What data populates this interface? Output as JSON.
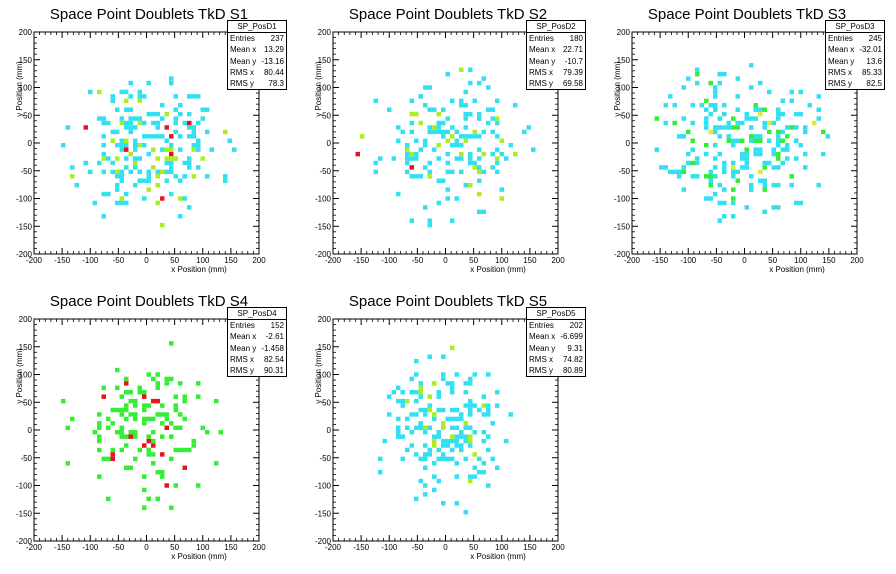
{
  "colors": {
    "cyan": "#33e0f2",
    "green": "#33ee33",
    "lime": "#aaee22",
    "yellow": "#e6e633",
    "red": "#e6141e"
  },
  "chart_data": [
    {
      "type": "heatmap",
      "title": "Space Point Doublets TkD S1",
      "xlabel": "x Position (mm)",
      "ylabel": "y Position (mm)",
      "xlim": [
        -200,
        200
      ],
      "ylim": [
        -200,
        200
      ],
      "xticks": [
        "-200",
        "-150",
        "-100",
        "-50",
        "0",
        "50",
        "100",
        "150",
        "200"
      ],
      "yticks": [
        "-200",
        "-150",
        "-100",
        "-50",
        "0",
        "50",
        "100",
        "150",
        "200"
      ],
      "stats": {
        "name": "SP_PosD1",
        "rows": [
          [
            "Entries",
            "237"
          ],
          [
            "Mean x",
            "13.29"
          ],
          [
            "Mean y",
            "-13.16"
          ],
          [
            "RMS x",
            "80.44"
          ],
          [
            "RMS y",
            "78.3"
          ]
        ]
      },
      "seed": 11,
      "n": 237,
      "spread": 160,
      "rmsx": 80.44,
      "rmsy": 78.3,
      "palette": {
        "base": "cyan",
        "accents": [
          [
            "lime",
            0.07
          ],
          [
            "red",
            0.03
          ]
        ]
      }
    },
    {
      "type": "heatmap",
      "title": "Space Point Doublets TkD S2",
      "xlabel": "x Position (mm)",
      "ylabel": "y Position (mm)",
      "xlim": [
        -200,
        200
      ],
      "ylim": [
        -200,
        200
      ],
      "xticks": [
        "-200",
        "-150",
        "-100",
        "-50",
        "0",
        "50",
        "100",
        "150",
        "200"
      ],
      "yticks": [
        "-200",
        "-150",
        "-100",
        "-50",
        "0",
        "50",
        "100",
        "150",
        "200"
      ],
      "stats": {
        "name": "SP_PosD2",
        "rows": [
          [
            "Entries",
            "180"
          ],
          [
            "Mean x",
            "22.71"
          ],
          [
            "Mean y",
            "-10.7"
          ],
          [
            "RMS x",
            "79.39"
          ],
          [
            "RMS y",
            "69.58"
          ]
        ]
      },
      "seed": 23,
      "n": 180,
      "spread": 160,
      "rmsx": 79.39,
      "rmsy": 69.58,
      "palette": {
        "base": "cyan",
        "accents": [
          [
            "lime",
            0.09
          ],
          [
            "red",
            0.01
          ]
        ]
      }
    },
    {
      "type": "heatmap",
      "title": "Space Point Doublets TkD S3",
      "xlabel": "x Position (mm)",
      "ylabel": "y Position (mm)",
      "xlim": [
        -200,
        200
      ],
      "ylim": [
        -200,
        200
      ],
      "xticks": [
        "-200",
        "-150",
        "-100",
        "-50",
        "0",
        "50",
        "100",
        "150",
        "200"
      ],
      "yticks": [
        "-200",
        "-150",
        "-100",
        "-50",
        "0",
        "50",
        "100",
        "150",
        "200"
      ],
      "stats": {
        "name": "SP_PosD3",
        "rows": [
          [
            "Entries",
            "245"
          ],
          [
            "Mean x",
            "-32.01"
          ],
          [
            "Mean y",
            "13.6"
          ],
          [
            "RMS x",
            "85.33"
          ],
          [
            "RMS y",
            "82.5"
          ]
        ]
      },
      "seed": 37,
      "n": 245,
      "spread": 160,
      "rmsx": 85.33,
      "rmsy": 82.5,
      "palette": {
        "base": "cyan",
        "accents": [
          [
            "green",
            0.12
          ],
          [
            "yellow",
            0.02
          ],
          [
            "red",
            0.01
          ]
        ]
      }
    },
    {
      "type": "heatmap",
      "title": "Space Point Doublets TkD S4",
      "xlabel": "x Position (mm)",
      "ylabel": "y Position (mm)",
      "xlim": [
        -200,
        200
      ],
      "ylim": [
        -200,
        200
      ],
      "xticks": [
        "-200",
        "-150",
        "-100",
        "-50",
        "0",
        "50",
        "100",
        "150",
        "200"
      ],
      "yticks": [
        "-200",
        "-150",
        "-100",
        "-50",
        "0",
        "50",
        "100",
        "150",
        "200"
      ],
      "stats": {
        "name": "SP_PosD4",
        "rows": [
          [
            "Entries",
            "152"
          ],
          [
            "Mean x",
            "-2.61"
          ],
          [
            "Mean y",
            "-1.458"
          ],
          [
            "RMS x",
            "82.54"
          ],
          [
            "RMS y",
            "90.31"
          ]
        ]
      },
      "seed": 53,
      "n": 152,
      "spread": 160,
      "rmsx": 82.54,
      "rmsy": 90.31,
      "palette": {
        "base": "green",
        "accents": [
          [
            "red",
            0.07
          ]
        ]
      }
    },
    {
      "type": "heatmap",
      "title": "Space Point Doublets TkD S5",
      "xlabel": "x Position (mm)",
      "ylabel": "y Position (mm)",
      "xlim": [
        -200,
        200
      ],
      "ylim": [
        -200,
        200
      ],
      "xticks": [
        "-200",
        "-150",
        "-100",
        "-50",
        "0",
        "50",
        "100",
        "150",
        "200"
      ],
      "yticks": [
        "-200",
        "-150",
        "-100",
        "-50",
        "0",
        "50",
        "100",
        "150",
        "200"
      ],
      "stats": {
        "name": "SP_PosD5",
        "rows": [
          [
            "Entries",
            "202"
          ],
          [
            "Mean x",
            "-6.699"
          ],
          [
            "Mean y",
            "9.31"
          ],
          [
            "RMS x",
            "74.82"
          ],
          [
            "RMS y",
            "80.89"
          ]
        ]
      },
      "seed": 71,
      "n": 202,
      "spread": 160,
      "rmsx": 74.82,
      "rmsy": 80.89,
      "palette": {
        "base": "cyan",
        "accents": [
          [
            "lime",
            0.08
          ],
          [
            "red",
            0.01
          ]
        ]
      }
    }
  ]
}
